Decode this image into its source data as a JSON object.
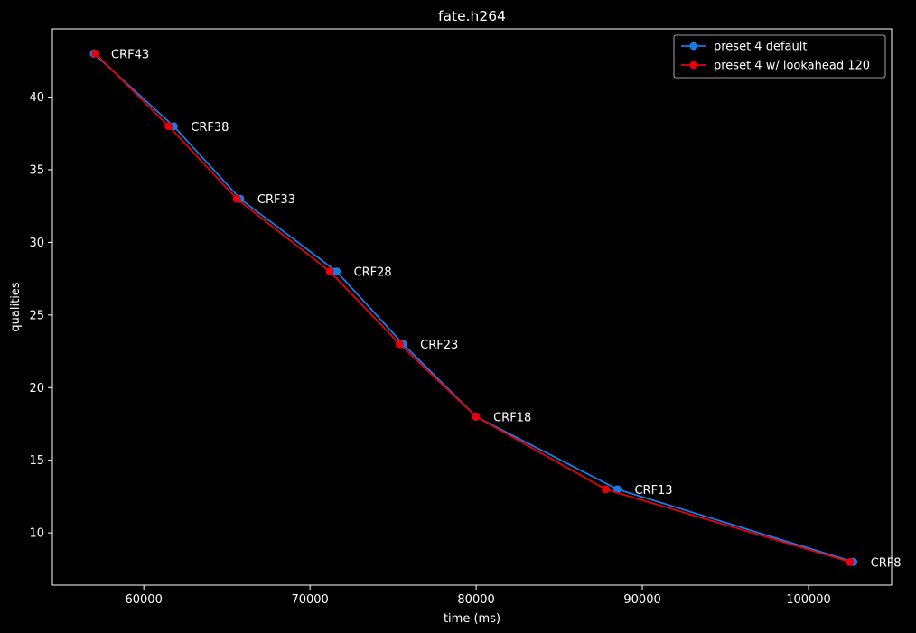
{
  "chart_data": {
    "type": "line",
    "title": "fate.h264",
    "xlabel": "time (ms)",
    "ylabel": "qualities",
    "xlim": [
      54500,
      105000
    ],
    "ylim": [
      6.4,
      44.7
    ],
    "xticks": [
      60000,
      70000,
      80000,
      90000,
      100000
    ],
    "xtick_labels": [
      "60000",
      "70000",
      "80000",
      "90000",
      "100000"
    ],
    "yticks": [
      10,
      15,
      20,
      25,
      30,
      35,
      40
    ],
    "ytick_labels": [
      "10",
      "15",
      "20",
      "25",
      "30",
      "35",
      "40"
    ],
    "grid": false,
    "legend_position": "top-right",
    "series": [
      {
        "name": "preset 4 default",
        "color": "#1a7ae8",
        "marker": "circle",
        "x": [
          57000,
          61800,
          65800,
          71600,
          75600,
          80000,
          88500,
          102700
        ],
        "y": [
          43,
          38,
          33,
          28,
          23,
          18,
          13,
          8
        ]
      },
      {
        "name": "preset 4 w/ lookahead 120",
        "color": "#e8000b",
        "marker": "circle",
        "x": [
          57100,
          61500,
          65600,
          71200,
          75400,
          80000,
          87800,
          102500
        ],
        "y": [
          43,
          38,
          33,
          28,
          23,
          18,
          13,
          8
        ]
      }
    ],
    "annotations": [
      {
        "text": "CRF43",
        "x": 57000,
        "y": 43
      },
      {
        "text": "CRF38",
        "x": 61800,
        "y": 38
      },
      {
        "text": "CRF33",
        "x": 65800,
        "y": 33
      },
      {
        "text": "CRF28",
        "x": 71600,
        "y": 28
      },
      {
        "text": "CRF23",
        "x": 75600,
        "y": 23
      },
      {
        "text": "CRF18",
        "x": 80000,
        "y": 18
      },
      {
        "text": "CRF13",
        "x": 88500,
        "y": 13
      },
      {
        "text": "CRF8",
        "x": 102700,
        "y": 8
      }
    ]
  }
}
